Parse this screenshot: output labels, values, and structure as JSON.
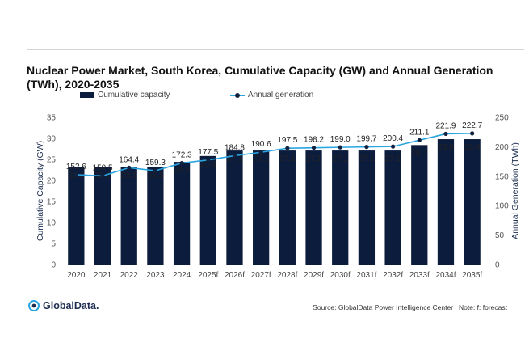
{
  "chart_data": {
    "type": "bar+line",
    "title": "Nuclear Power Market, South Korea, Cumulative Capacity (GW) and Annual Generation (TWh), 2020-2035",
    "categories": [
      "2020",
      "2021",
      "2022",
      "2023",
      "2024",
      "2025f",
      "2026f",
      "2027f",
      "2028f",
      "2029f",
      "2030f",
      "2031f",
      "2032f",
      "2033f",
      "2034f",
      "2035f"
    ],
    "series": [
      {
        "name": "Cumulative capacity",
        "axis": "left",
        "kind": "bar",
        "values": [
          23.2,
          23.1,
          23.1,
          23.1,
          24.4,
          25.8,
          27.1,
          27.1,
          27.1,
          27.1,
          27.1,
          27.1,
          27.1,
          28.4,
          29.8,
          29.8
        ]
      },
      {
        "name": "Annual generation",
        "axis": "right",
        "kind": "line",
        "values": [
          152.6,
          150.5,
          164.4,
          159.3,
          172.3,
          177.5,
          184.8,
          190.6,
          197.5,
          198.2,
          199.0,
          199.7,
          200.4,
          211.1,
          221.9,
          222.7
        ]
      }
    ],
    "ylabel_left": "Cumulative Capacity (GW)",
    "ylabel_right": "Annual Generation (TWh)",
    "ylim_left": [
      0,
      35
    ],
    "yticks_left": [
      0,
      5,
      10,
      15,
      20,
      25,
      30,
      35
    ],
    "ylim_right": [
      0,
      250
    ],
    "yticks_right": [
      0,
      50,
      100,
      150,
      200,
      250
    ],
    "bar_color": "#0c1c3d",
    "line_color": "#2aa5e0",
    "marker_color": "#10223f"
  },
  "legend": {
    "bar_label": "Cumulative capacity",
    "line_label": "Annual generation"
  },
  "footer": {
    "logo_text": "GlobalData.",
    "source_text": "Source: GlobalData Power Intelligence Center | Note: f: forecast"
  }
}
